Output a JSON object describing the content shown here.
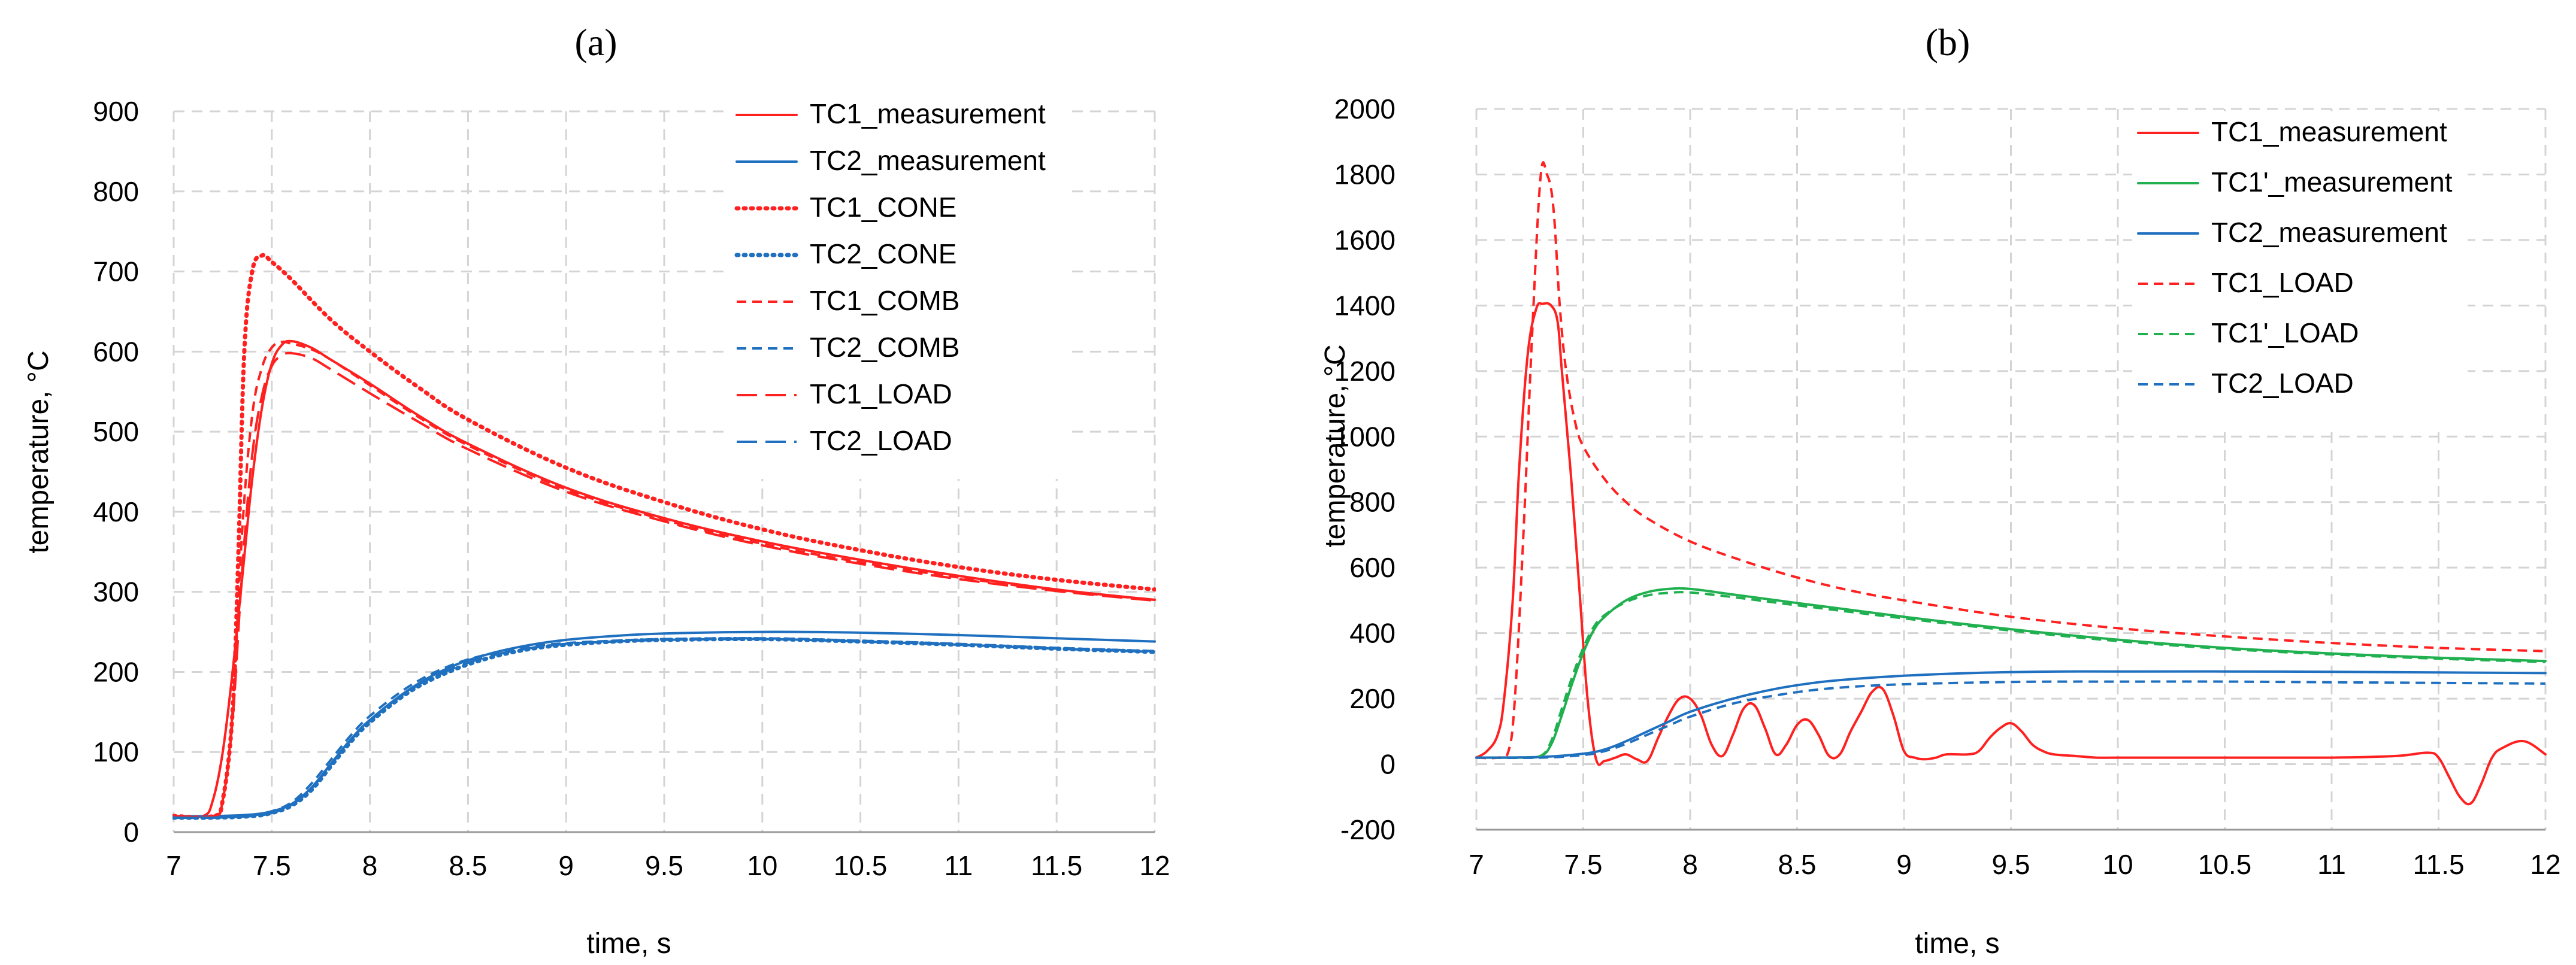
{
  "chart_data": [
    {
      "type": "line",
      "panel": "(a)",
      "xlabel": "time, s",
      "ylabel": "temperature, °C",
      "xlim": [
        7,
        12
      ],
      "ylim": [
        0,
        900
      ],
      "xticks": [
        "7",
        "7.5",
        "8",
        "8.5",
        "9",
        "9.5",
        "10",
        "10.5",
        "11",
        "11.5",
        "12"
      ],
      "yticks": [
        "0",
        "100",
        "200",
        "300",
        "400",
        "500",
        "600",
        "700",
        "800",
        "900"
      ],
      "legend_position": "top-right",
      "series": [
        {
          "name": "TC1_measurement",
          "color": "#ff2020",
          "dash": "solid",
          "x": [
            7.0,
            7.15,
            7.2,
            7.25,
            7.3,
            7.35,
            7.4,
            7.45,
            7.5,
            7.55,
            7.6,
            7.7,
            7.8,
            8.0,
            8.25,
            8.5,
            9.0,
            9.5,
            10.0,
            10.5,
            11.0,
            11.5,
            12.0
          ],
          "y": [
            20,
            20,
            40,
            100,
            200,
            320,
            440,
            530,
            585,
            608,
            613,
            605,
            590,
            560,
            520,
            485,
            430,
            392,
            363,
            340,
            320,
            303,
            290
          ]
        },
        {
          "name": "TC2_measurement",
          "color": "#2070c0",
          "dash": "solid",
          "x": [
            7.0,
            7.2,
            7.4,
            7.5,
            7.6,
            7.7,
            7.8,
            7.9,
            8.0,
            8.2,
            8.4,
            8.6,
            8.8,
            9.0,
            9.25,
            9.5,
            10.0,
            10.5,
            11.0,
            11.5,
            12.0
          ],
          "y": [
            20,
            20,
            22,
            26,
            35,
            55,
            85,
            115,
            140,
            178,
            205,
            222,
            233,
            240,
            245,
            248,
            250,
            249,
            246,
            242,
            238
          ]
        },
        {
          "name": "TC1_CONE",
          "color": "#ff2020",
          "dash": "dotted",
          "x": [
            7.0,
            7.2,
            7.25,
            7.3,
            7.33,
            7.36,
            7.4,
            7.45,
            7.5,
            7.6,
            7.8,
            8.0,
            8.25,
            8.5,
            9.0,
            9.5,
            10.0,
            10.5,
            11.0,
            11.5,
            12.0
          ],
          "y": [
            20,
            20,
            40,
            150,
            350,
            600,
            700,
            720,
            712,
            690,
            640,
            600,
            555,
            515,
            455,
            412,
            378,
            352,
            331,
            315,
            303
          ]
        },
        {
          "name": "TC2_CONE",
          "color": "#2070c0",
          "dash": "dotted",
          "x": [
            7.0,
            7.2,
            7.4,
            7.5,
            7.6,
            7.7,
            7.8,
            7.9,
            8.0,
            8.2,
            8.4,
            8.6,
            8.8,
            9.0,
            9.25,
            9.5,
            10.0,
            10.5,
            11.0,
            11.5,
            12.0
          ],
          "y": [
            18,
            18,
            20,
            24,
            33,
            52,
            82,
            112,
            137,
            175,
            200,
            217,
            228,
            234,
            238,
            240,
            241,
            238,
            234,
            229,
            225
          ]
        },
        {
          "name": "TC1_COMB",
          "color": "#ff2020",
          "dash": "short-dash",
          "x": [
            7.0,
            7.2,
            7.25,
            7.3,
            7.35,
            7.4,
            7.45,
            7.5,
            7.55,
            7.6,
            7.7,
            7.8,
            8.0,
            8.25,
            8.5,
            9.0,
            9.5,
            10.0,
            10.5,
            11.0,
            11.5,
            12.0
          ],
          "y": [
            20,
            20,
            40,
            150,
            380,
            520,
            580,
            605,
            612,
            610,
            603,
            590,
            558,
            518,
            483,
            428,
            390,
            360,
            337,
            318,
            302,
            290
          ]
        },
        {
          "name": "TC2_COMB",
          "color": "#2070c0",
          "dash": "short-dash",
          "x": [
            7.0,
            7.2,
            7.4,
            7.5,
            7.6,
            7.7,
            7.8,
            7.9,
            8.0,
            8.2,
            8.4,
            8.6,
            8.8,
            9.0,
            9.25,
            9.5,
            10.0,
            10.5,
            11.0,
            11.5,
            12.0
          ],
          "y": [
            18,
            18,
            21,
            26,
            37,
            60,
            90,
            120,
            145,
            182,
            207,
            222,
            231,
            236,
            239,
            241,
            242,
            239,
            235,
            230,
            226
          ]
        },
        {
          "name": "TC1_LOAD",
          "color": "#ff2020",
          "dash": "long-dash",
          "x": [
            7.0,
            7.2,
            7.25,
            7.3,
            7.35,
            7.4,
            7.45,
            7.5,
            7.55,
            7.6,
            7.7,
            7.8,
            8.0,
            8.25,
            8.5,
            9.0,
            9.5,
            10.0,
            10.5,
            11.0,
            11.5,
            12.0
          ],
          "y": [
            20,
            20,
            40,
            140,
            330,
            470,
            545,
            582,
            595,
            598,
            592,
            578,
            548,
            512,
            478,
            425,
            388,
            358,
            335,
            316,
            301,
            289
          ]
        },
        {
          "name": "TC2_LOAD",
          "color": "#2070c0",
          "dash": "long-dash",
          "x": [
            7.0,
            7.2,
            7.4,
            7.5,
            7.6,
            7.7,
            7.8,
            7.9,
            8.0,
            8.2,
            8.4,
            8.6,
            8.8,
            9.0,
            9.25,
            9.5,
            10.0,
            10.5,
            11.0,
            11.5,
            12.0
          ],
          "y": [
            18,
            18,
            20,
            24,
            34,
            54,
            84,
            114,
            139,
            177,
            202,
            219,
            229,
            235,
            238,
            240,
            241,
            238,
            234,
            229,
            225
          ]
        }
      ]
    },
    {
      "type": "line",
      "panel": "(b)",
      "xlabel": "time, s",
      "ylabel": "temperature, °C",
      "xlim": [
        7,
        12
      ],
      "ylim": [
        -200,
        2000
      ],
      "xticks": [
        "7",
        "7.5",
        "8",
        "8.5",
        "9",
        "9.5",
        "10",
        "10.5",
        "11",
        "11.5",
        "12"
      ],
      "yticks": [
        "-200",
        "0",
        "200",
        "400",
        "600",
        "800",
        "1000",
        "1200",
        "1400",
        "1600",
        "1800",
        "2000"
      ],
      "legend_position": "top-right",
      "series": [
        {
          "name": "TC1_measurement",
          "color": "#ff2020",
          "dash": "solid",
          "x": [
            7.0,
            7.05,
            7.1,
            7.13,
            7.17,
            7.2,
            7.24,
            7.28,
            7.31,
            7.35,
            7.38,
            7.4,
            7.44,
            7.48,
            7.52,
            7.56,
            7.6,
            7.65,
            7.7,
            7.75,
            7.8,
            7.85,
            7.9,
            7.95,
            8.0,
            8.05,
            8.1,
            8.15,
            8.2,
            8.25,
            8.3,
            8.35,
            8.4,
            8.45,
            8.5,
            8.55,
            8.6,
            8.65,
            8.7,
            8.75,
            8.8,
            8.85,
            8.9,
            8.95,
            9.0,
            9.05,
            9.1,
            9.15,
            9.2,
            9.3,
            9.35,
            9.4,
            9.45,
            9.5,
            9.55,
            9.6,
            9.65,
            9.7,
            9.8,
            9.9,
            10.0,
            10.5,
            11.0,
            11.3,
            11.45,
            11.5,
            11.55,
            11.6,
            11.65,
            11.7,
            11.75,
            11.8,
            11.9,
            12.0
          ],
          "y": [
            20,
            40,
            90,
            200,
            500,
            900,
            1250,
            1390,
            1405,
            1400,
            1350,
            1200,
            900,
            550,
            200,
            15,
            10,
            20,
            30,
            15,
            10,
            80,
            150,
            200,
            200,
            150,
            60,
            25,
            90,
            170,
            180,
            110,
            30,
            60,
            120,
            135,
            90,
            25,
            30,
            100,
            160,
            220,
            230,
            150,
            40,
            20,
            15,
            20,
            30,
            30,
            40,
            80,
            110,
            125,
            100,
            60,
            40,
            30,
            25,
            20,
            20,
            20,
            20,
            25,
            35,
            20,
            -40,
            -100,
            -120,
            -60,
            20,
            50,
            70,
            30
          ]
        },
        {
          "name": "TC1'_measurement",
          "color": "#20b050",
          "dash": "solid",
          "x": [
            7.0,
            7.2,
            7.3,
            7.35,
            7.4,
            7.45,
            7.5,
            7.55,
            7.6,
            7.7,
            7.8,
            7.9,
            8.0,
            8.2,
            8.5,
            9.0,
            9.5,
            10.0,
            10.5,
            11.0,
            11.5,
            12.0
          ],
          "y": [
            20,
            20,
            25,
            60,
            150,
            250,
            340,
            410,
            450,
            500,
            525,
            535,
            535,
            518,
            492,
            450,
            412,
            380,
            355,
            338,
            325,
            315
          ]
        },
        {
          "name": "TC2_measurement",
          "color": "#2070c0",
          "dash": "solid",
          "x": [
            7.0,
            7.3,
            7.5,
            7.6,
            7.7,
            7.8,
            7.9,
            8.0,
            8.2,
            8.4,
            8.6,
            8.8,
            9.0,
            9.25,
            9.5,
            9.75,
            10.0,
            10.5,
            11.0,
            11.5,
            12.0
          ],
          "y": [
            20,
            22,
            32,
            45,
            70,
            100,
            130,
            160,
            200,
            230,
            250,
            262,
            270,
            277,
            281,
            283,
            283,
            283,
            282,
            280,
            278
          ]
        },
        {
          "name": "TC1_LOAD",
          "color": "#ff2020",
          "dash": "short-dash",
          "x": [
            7.0,
            7.1,
            7.15,
            7.18,
            7.22,
            7.26,
            7.3,
            7.33,
            7.36,
            7.39,
            7.42,
            7.46,
            7.5,
            7.6,
            7.7,
            7.8,
            8.0,
            8.25,
            8.5,
            8.75,
            9.0,
            9.5,
            10.0,
            10.5,
            11.0,
            11.5,
            12.0
          ],
          "y": [
            20,
            20,
            40,
            200,
            700,
            1300,
            1790,
            1800,
            1700,
            1400,
            1200,
            1050,
            970,
            870,
            800,
            750,
            680,
            620,
            570,
            530,
            500,
            450,
            415,
            390,
            370,
            355,
            345
          ]
        },
        {
          "name": "TC1'_LOAD",
          "color": "#20b050",
          "dash": "short-dash",
          "x": [
            7.0,
            7.2,
            7.3,
            7.35,
            7.4,
            7.45,
            7.5,
            7.55,
            7.6,
            7.7,
            7.8,
            7.9,
            8.0,
            8.2,
            8.5,
            9.0,
            9.5,
            10.0,
            10.5,
            11.0,
            11.5,
            12.0
          ],
          "y": [
            20,
            20,
            25,
            70,
            170,
            270,
            355,
            420,
            455,
            495,
            515,
            523,
            524,
            510,
            485,
            445,
            408,
            376,
            352,
            335,
            322,
            312
          ]
        },
        {
          "name": "TC2_LOAD",
          "color": "#2070c0",
          "dash": "short-dash",
          "x": [
            7.0,
            7.3,
            7.5,
            7.6,
            7.7,
            7.8,
            7.9,
            8.0,
            8.2,
            8.4,
            8.6,
            8.8,
            9.0,
            9.25,
            9.5,
            9.75,
            10.0,
            10.5,
            11.0,
            11.5,
            12.0
          ],
          "y": [
            20,
            20,
            28,
            40,
            62,
            90,
            118,
            145,
            185,
            210,
            228,
            238,
            244,
            248,
            251,
            252,
            252,
            252,
            250,
            248,
            246
          ]
        }
      ]
    }
  ]
}
